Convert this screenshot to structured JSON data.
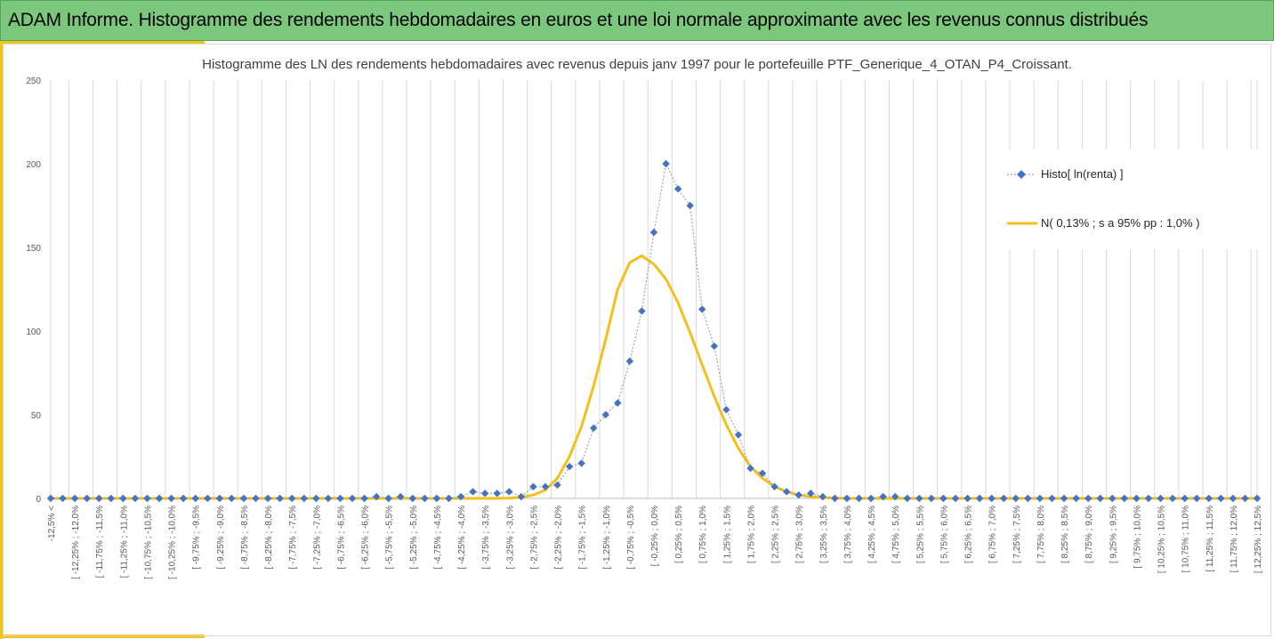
{
  "banner": {
    "title": "ADAM Informe. Histogramme des rendements hebdomadaires en euros et une loi normale approximante avec les revenus connus distribués"
  },
  "chart_data": {
    "type": "line",
    "title": "Histogramme des LN des rendements hebdomadaires avec revenus depuis janv 1997 pour le portefeuille PTF_Generique_4_OTAN_P4_Croissant.",
    "xlabel": "",
    "ylabel": "",
    "ylim": [
      0,
      250
    ],
    "yticks": [
      0,
      50,
      100,
      150,
      200,
      250
    ],
    "grid": "vertical",
    "legend_position": "right",
    "categories": [
      "-12,5% <",
      "[ -12,25% ; -12,0%",
      "[ -11,75% ; -11,5%",
      "[ -11,25% ; -11,0%",
      "[ -10,75% ; -10,5%",
      "[ -10,25% ; -10,0%",
      "[ -9,75% ; -9,5%",
      "[ -9,25% ; -9,0%",
      "[ -8,75% ; -8,5%",
      "[ -8,25% ; -8,0%",
      "[ -7,75% ; -7,5%",
      "[ -7,25% ; -7,0%",
      "[ -6,75% ; -6,5%",
      "[ -6,25% ; -6,0%",
      "[ -5,75% ; -5,5%",
      "[ -5,25% ; -5,0%",
      "[ -4,75% ; -4,5%",
      "[ -4,25% ; -4,0%",
      "[ -3,75% ; -3,5%",
      "[ -3,25% ; -3,0%",
      "[ -2,75% ; -2,5%",
      "[ -2,25% ; -2,0%",
      "[ -1,75% ; -1,5%",
      "[ -1,25% ; -1,0%",
      "[ -0,75% ; -0,5%",
      "[ -0,25% ; 0,0%",
      "[ 0,25% ; 0,5%",
      "[ 0,75% ; 1,0%",
      "[ 1,25% ; 1,5%",
      "[ 1,75% ; 2,0%",
      "[ 2,25% ; 2,5%",
      "[ 2,75% ; 3,0%",
      "[ 3,25% ; 3,5%",
      "[ 3,75% ; 4,0%",
      "[ 4,25% ; 4,5%",
      "[ 4,75% ; 5,0%",
      "[ 5,25% ; 5,5%",
      "[ 5,75% ; 6,0%",
      "[ 6,25% ; 6,5%",
      "[ 6,75% ; 7,0%",
      "[ 7,25% ; 7,5%",
      "[ 7,75% ; 8,0%",
      "[ 8,25% ; 8,5%",
      "[ 8,75% ; 9,0%",
      "[ 9,25% ; 9,5%",
      "[ 9,75% ; 10,0%",
      "[ 10,25% ; 10,5%",
      "[ 10,75% ; 11,0%",
      "[ 11,25% ; 11,5%",
      "[ 11,75% ; 12,0%",
      "[ 12,25% ; 12,5%"
    ],
    "x": [
      -12.5,
      -12.25,
      -12,
      -11.75,
      -11.5,
      -11.25,
      -11,
      -10.75,
      -10.5,
      -10.25,
      -10,
      -9.75,
      -9.5,
      -9.25,
      -9,
      -8.75,
      -8.5,
      -8.25,
      -8,
      -7.75,
      -7.5,
      -7.25,
      -7,
      -6.75,
      -6.5,
      -6.25,
      -6,
      -5.75,
      -5.5,
      -5.25,
      -5,
      -4.75,
      -4.5,
      -4.25,
      -4,
      -3.75,
      -3.5,
      -3.25,
      -3,
      -2.75,
      -2.5,
      -2.25,
      -2,
      -1.75,
      -1.5,
      -1.25,
      -1,
      -0.75,
      -0.5,
      -0.25,
      0,
      0.25,
      0.5,
      0.75,
      1,
      1.25,
      1.5,
      1.75,
      2,
      2.25,
      2.5,
      2.75,
      3,
      3.25,
      3.5,
      3.75,
      4,
      4.25,
      4.5,
      4.75,
      5,
      5.25,
      5.5,
      5.75,
      6,
      6.25,
      6.5,
      6.75,
      7,
      7.25,
      7.5,
      7.75,
      8,
      8.25,
      8.5,
      8.75,
      9,
      9.25,
      9.5,
      9.75,
      10,
      10.25,
      10.5,
      10.75,
      11,
      11.25,
      11.5,
      11.75,
      12,
      12.25,
      12.5
    ],
    "series": [
      {
        "name": "Histo[ ln(renta) ]",
        "color": "#4472c4",
        "marker": "diamond",
        "values": [
          0,
          0,
          0,
          0,
          0,
          0,
          0,
          0,
          0,
          0,
          0,
          0,
          0,
          0,
          0,
          0,
          0,
          0,
          0,
          0,
          0,
          0,
          0,
          0,
          0,
          0,
          0,
          1,
          0,
          1,
          0,
          0,
          0,
          0,
          1,
          4,
          3,
          3,
          4,
          1,
          7,
          7,
          8,
          19,
          21,
          42,
          50,
          57,
          82,
          112,
          159,
          200,
          185,
          175,
          113,
          91,
          53,
          38,
          18,
          15,
          7,
          4,
          2,
          3,
          1,
          0,
          0,
          0,
          0,
          1,
          1,
          0,
          0,
          0,
          0,
          0,
          0,
          0,
          0,
          0,
          0,
          0,
          0,
          0,
          0,
          0,
          0,
          0,
          0,
          0,
          0,
          0,
          0,
          0,
          0,
          0,
          0,
          0,
          0,
          0,
          0
        ]
      },
      {
        "name": "N( 0,13% ; s a 95% pp : 1,0% )",
        "color": "#f5c01a",
        "values": [
          0,
          0,
          0,
          0,
          0,
          0,
          0,
          0,
          0,
          0,
          0,
          0,
          0,
          0,
          0,
          0,
          0,
          0,
          0,
          0,
          0,
          0,
          0,
          0,
          0,
          0,
          0,
          0,
          0,
          0,
          0,
          0,
          0,
          0,
          0,
          0,
          0,
          0,
          0.2,
          0.6,
          2,
          5,
          12,
          25,
          43,
          67,
          95,
          125,
          141,
          145,
          140,
          131,
          117,
          99,
          80,
          61,
          44,
          30,
          19,
          12,
          7,
          4,
          2,
          1,
          0.5,
          0.2,
          0,
          0,
          0,
          0,
          0,
          0,
          0,
          0,
          0,
          0,
          0,
          0,
          0,
          0,
          0,
          0,
          0,
          0,
          0,
          0,
          0,
          0,
          0,
          0,
          0,
          0,
          0,
          0,
          0,
          0,
          0,
          0,
          0,
          0,
          0
        ]
      }
    ]
  }
}
